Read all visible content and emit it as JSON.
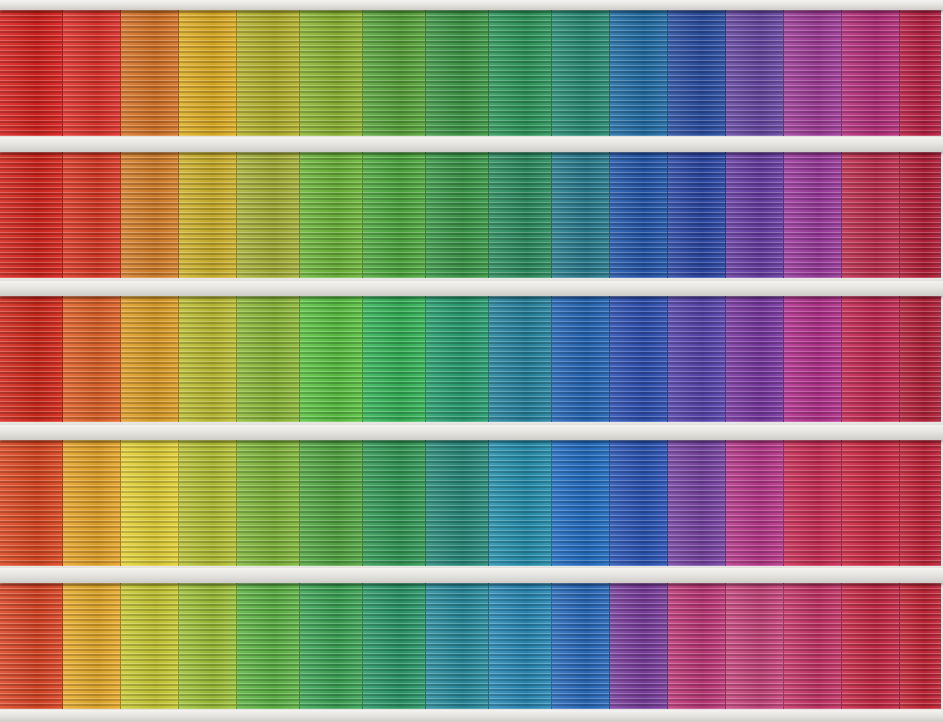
{
  "scene": "photo-rainbow-facade",
  "palette_rows": [
    [
      "#d8231f",
      "#e2342c",
      "#d9772a",
      "#e1b026",
      "#b6b52f",
      "#8fb735",
      "#5aa73c",
      "#3f9a48",
      "#2f9a5e",
      "#2a8f77",
      "#2370a9",
      "#2c50a5",
      "#6a4aa6",
      "#a33f9b",
      "#b8317e",
      "#bb2145"
    ],
    [
      "#d5261d",
      "#dd3a26",
      "#d8822c",
      "#cfb32d",
      "#a8b33a",
      "#6fb83c",
      "#50ab40",
      "#3c9a4a",
      "#2e8f62",
      "#2a7e90",
      "#2458ad",
      "#2d48a7",
      "#6a3fa6",
      "#9d3c9f",
      "#c0304f",
      "#b51f3a"
    ],
    [
      "#d42a1c",
      "#e3642a",
      "#e1a12a",
      "#bfc035",
      "#8fbb3b",
      "#5cc544",
      "#37b65a",
      "#2aa073",
      "#2886a1",
      "#2668b8",
      "#2f51b4",
      "#5a46b0",
      "#7c3aa4",
      "#b63390",
      "#c72b54",
      "#b6233b"
    ],
    [
      "#de4a23",
      "#e9a72c",
      "#e5d43a",
      "#b8c437",
      "#83b93d",
      "#55a944",
      "#349c58",
      "#2a8d7e",
      "#2792b0",
      "#2470c5",
      "#2c56b8",
      "#7a46a6",
      "#bb3a8d",
      "#cd3058",
      "#cf2b45",
      "#c4253a"
    ],
    [
      "#dd4726",
      "#e9ad2e",
      "#c9cb36",
      "#9fc33a",
      "#5fb646",
      "#3ea658",
      "#2c9a6a",
      "#2a8ea0",
      "#2a8bb8",
      "#2a6cbe",
      "#7b3f9f",
      "#c03a7a",
      "#c9477f",
      "#c83669",
      "#c82a48",
      "#c52638"
    ]
  ]
}
